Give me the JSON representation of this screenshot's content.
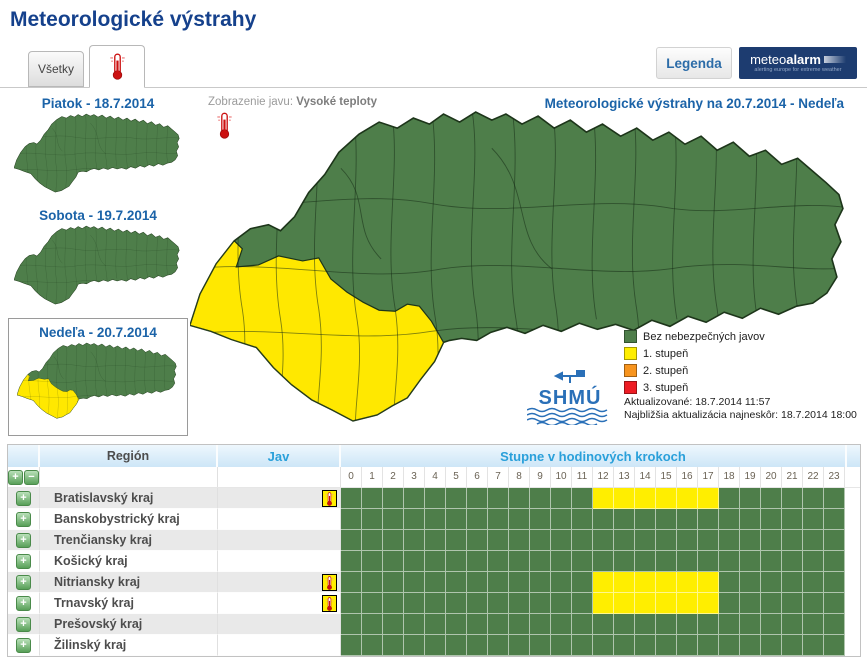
{
  "page_title": "Meteorologické výstrahy",
  "tabs": {
    "all_label": "Všetky",
    "active_tab": "vysoke-teploty"
  },
  "toolbar": {
    "legend_button": "Legenda"
  },
  "meteoalarm_logo": {
    "part1": "meteo",
    "part2": "alarm",
    "tagline": "alerting europe for extreme weather"
  },
  "day_maps": [
    {
      "title": "Piatok - 18.7.2014",
      "selected": false,
      "warning_overlay": false
    },
    {
      "title": "Sobota - 19.7.2014",
      "selected": false,
      "warning_overlay": false
    },
    {
      "title": "Nedeľa - 20.7.2014",
      "selected": true,
      "warning_overlay": true
    }
  ],
  "main_map": {
    "phenomenon_label": "Zobrazenie javu:",
    "phenomenon_value": "Vysoké teploty",
    "title": "Meteorologické výstrahy na 20.7.2014 - Nedeľa",
    "legend": [
      {
        "label": "Bez nebezpečných javov",
        "color": "#4e7e4a"
      },
      {
        "label": "1. stupeň",
        "color": "#ffee00"
      },
      {
        "label": "2. stupeň",
        "color": "#f7941e"
      },
      {
        "label": "3. stupeň",
        "color": "#ed1c24"
      }
    ],
    "updated_line1": "Aktualizované: 18.7.2014 11:57",
    "updated_line2": "Najbližšia aktualizácia najneskôr: 18.7.2014 18:00",
    "shmu_logo": "SHMÚ"
  },
  "warning_table": {
    "col_region": "Región",
    "col_jav": "Jav",
    "col_hours": "Stupne v hodinových krokoch",
    "hours": [
      "0",
      "1",
      "2",
      "3",
      "4",
      "5",
      "6",
      "7",
      "8",
      "9",
      "10",
      "11",
      "12",
      "13",
      "14",
      "15",
      "16",
      "17",
      "18",
      "19",
      "20",
      "21",
      "22",
      "23"
    ],
    "rows": [
      {
        "region": "Bratislavský kraj",
        "phenomenon_icon": true,
        "warning_from": 12,
        "warning_to": 17
      },
      {
        "region": "Banskobystrický kraj",
        "phenomenon_icon": false
      },
      {
        "region": "Trenčiansky kraj",
        "phenomenon_icon": false
      },
      {
        "region": "Košický kraj",
        "phenomenon_icon": false
      },
      {
        "region": "Nitriansky kraj",
        "phenomenon_icon": true,
        "warning_from": 12,
        "warning_to": 17
      },
      {
        "region": "Trnavský kraj",
        "phenomenon_icon": true,
        "warning_from": 12,
        "warning_to": 17
      },
      {
        "region": "Prešovský kraj",
        "phenomenon_icon": false
      },
      {
        "region": "Žilinský kraj",
        "phenomenon_icon": false
      }
    ]
  },
  "colors": {
    "green": "#4e7e4a",
    "yellow": "#ffee00",
    "orange": "#f7941e",
    "red": "#ed1c24"
  }
}
